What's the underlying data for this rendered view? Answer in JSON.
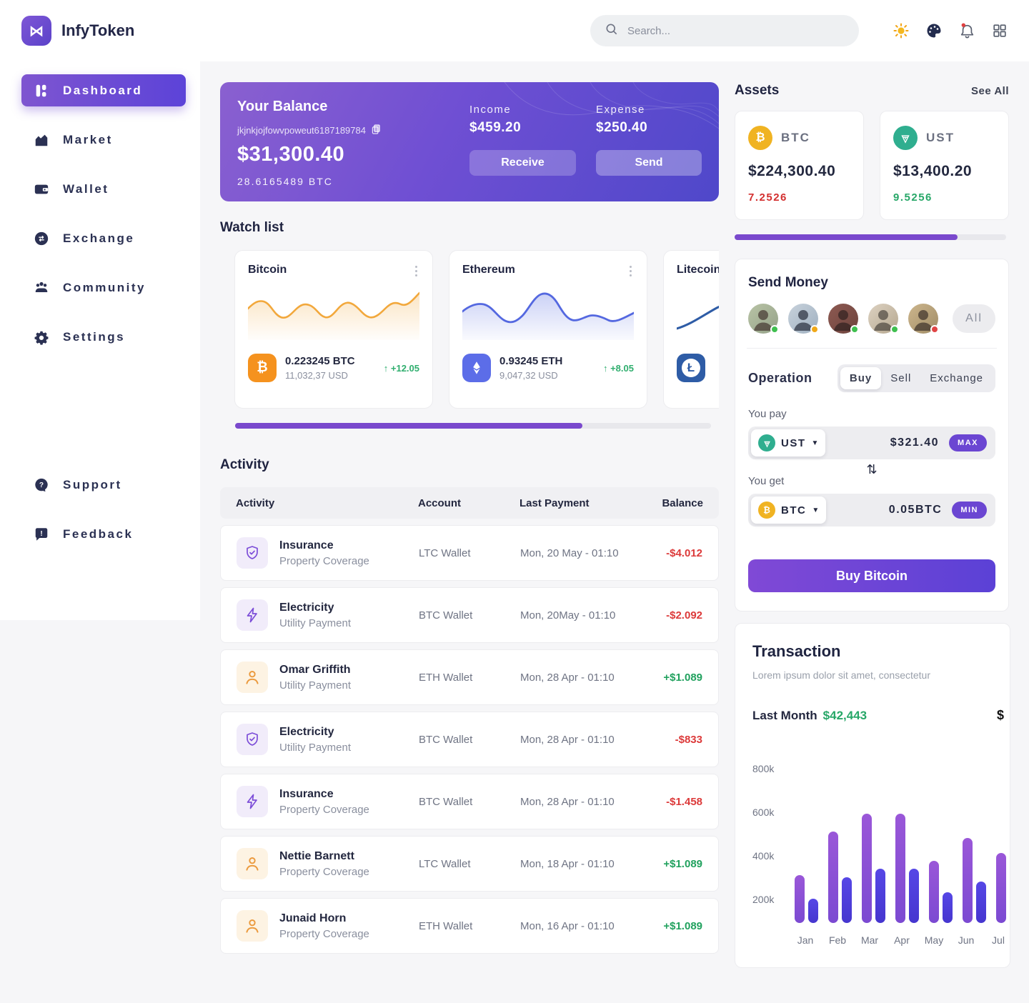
{
  "app": {
    "name": "InfyToken"
  },
  "sidebar": {
    "items": [
      {
        "label": "Dashboard",
        "icon": "dashboard-icon",
        "active": true
      },
      {
        "label": "Market",
        "icon": "market-icon",
        "active": false
      },
      {
        "label": "Wallet",
        "icon": "wallet-icon",
        "active": false
      },
      {
        "label": "Exchange",
        "icon": "exchange-icon",
        "active": false
      },
      {
        "label": "Community",
        "icon": "community-icon",
        "active": false
      },
      {
        "label": "Settings",
        "icon": "settings-icon",
        "active": false
      }
    ],
    "footer_items": [
      {
        "label": "Support",
        "icon": "support-icon"
      },
      {
        "label": "Feedback",
        "icon": "feedback-icon"
      }
    ]
  },
  "topbar": {
    "search_placeholder": "Search...",
    "icons": [
      "theme-sun-icon",
      "palette-icon",
      "notifications-bell-icon",
      "apps-grid-icon"
    ],
    "notification_unread": true
  },
  "balance": {
    "title": "Your Balance",
    "wallet_address": "jkjnkjojfowvpoweut6187189784",
    "amount_usd": "$31,300.40",
    "amount_btc": "28.6165489 BTC",
    "income_label": "Income",
    "income_value": "$459.20",
    "expense_label": "Expense",
    "expense_value": "$250.40",
    "receive_label": "Receive",
    "send_label": "Send"
  },
  "watchlist": {
    "title": "Watch list",
    "cards": [
      {
        "name": "Bitcoin",
        "coin": "BTC",
        "amount": "0.223245 BTC",
        "usd": "11,032,37 USD",
        "change": "+12.05",
        "trend": "up",
        "line_color": "#f2a83c"
      },
      {
        "name": "Ethereum",
        "coin": "ETH",
        "amount": "0.93245 ETH",
        "usd": "9,047,32 USD",
        "change": "+8.05",
        "trend": "up",
        "line_color": "#5468e0"
      },
      {
        "name": "Litecoin",
        "coin": "LTC",
        "line_color": "#2e5ca6"
      }
    ]
  },
  "activity": {
    "title": "Activity",
    "columns": [
      "Activity",
      "Account",
      "Last Payment",
      "Balance"
    ],
    "rows": [
      {
        "title": "Insurance",
        "subtitle": "Property Coverage",
        "icon": "shield-icon",
        "account": "LTC Wallet",
        "last_payment": "Mon, 20 May - 01:10",
        "balance": "-$4.012",
        "direction": "negative"
      },
      {
        "title": "Electricity",
        "subtitle": "Utility Payment",
        "icon": "bolt-icon",
        "account": "BTC Wallet",
        "last_payment": "Mon, 20May - 01:10",
        "balance": "-$2.092",
        "direction": "negative"
      },
      {
        "title": "Omar Griffith",
        "subtitle": "Utility Payment",
        "icon": "person-icon",
        "account": "ETH Wallet",
        "last_payment": "Mon, 28 Apr - 01:10",
        "balance": "+$1.089",
        "direction": "positive"
      },
      {
        "title": "Electricity",
        "subtitle": "Utility Payment",
        "icon": "shield-icon",
        "account": "BTC Wallet",
        "last_payment": "Mon, 28 Apr - 01:10",
        "balance": "-$833",
        "direction": "negative"
      },
      {
        "title": "Insurance",
        "subtitle": "Property Coverage",
        "icon": "bolt-icon",
        "account": "BTC Wallet",
        "last_payment": "Mon, 28 Apr - 01:10",
        "balance": "-$1.458",
        "direction": "negative"
      },
      {
        "title": "Nettie Barnett",
        "subtitle": "Property Coverage",
        "icon": "person-icon",
        "account": "LTC Wallet",
        "last_payment": "Mon, 18 Apr - 01:10",
        "balance": "+$1.089",
        "direction": "positive"
      },
      {
        "title": "Junaid Horn",
        "subtitle": "Property Coverage",
        "icon": "person-icon",
        "account": "ETH Wallet",
        "last_payment": "Mon, 16 Apr - 01:10",
        "balance": "+$1.089",
        "direction": "positive"
      }
    ]
  },
  "assets": {
    "title": "Assets",
    "see_all_label": "See All",
    "cards": [
      {
        "symbol": "BTC",
        "value": "$224,300.40",
        "quantity": "7.2526",
        "quantity_color": "#d32f2f"
      },
      {
        "symbol": "UST",
        "value": "$13,400.20",
        "quantity": "9.5256",
        "quantity_color": "#27a768"
      }
    ]
  },
  "send_money": {
    "title": "Send Money",
    "all_label": "All",
    "contacts": [
      {
        "status": "online"
      },
      {
        "status": "away"
      },
      {
        "status": "online"
      },
      {
        "status": "online"
      },
      {
        "status": "busy"
      }
    ]
  },
  "operation": {
    "label": "Operation",
    "tabs": [
      "Buy",
      "Sell",
      "Exchange"
    ],
    "active_tab": "Buy",
    "you_pay": {
      "label": "You pay",
      "currency": "UST",
      "amount": "$321.40",
      "badge": "MAX"
    },
    "you_get": {
      "label": "You get",
      "currency": "BTC",
      "amount": "0.05BTC",
      "badge": "MIN"
    },
    "swap_icon": "swap-vertical-icon",
    "submit_label": "Buy Bitcoin"
  },
  "transaction": {
    "title": "Transaction",
    "subtitle": "Lorem ipsum dolor sit amet, consectetur",
    "last_month_label": "Last Month",
    "last_month_value": "$42,443",
    "clipped_right_symbol": "$",
    "chart_data": {
      "type": "bar",
      "categories": [
        "Jan",
        "Feb",
        "Mar",
        "Apr",
        "May",
        "Jun",
        "Jul"
      ],
      "series": [
        {
          "name": "primary",
          "color": "#8a52d4",
          "values_k": [
            310,
            510,
            590,
            590,
            375,
            480,
            410
          ]
        },
        {
          "name": "secondary",
          "color": "#4e3ee0",
          "values_k": [
            200,
            300,
            340,
            340,
            230,
            280,
            240
          ]
        }
      ],
      "y_tick_labels": [
        "200k",
        "400k",
        "600k",
        "800k"
      ],
      "ylim_k": [
        0,
        800
      ],
      "grid": false,
      "legend": false
    }
  },
  "colors": {
    "accent_purple": "#6b46d2",
    "positive_green": "#21a15e",
    "negative_red": "#dc3a3a",
    "btc_orange": "#f5921e",
    "eth_blue": "#5c6de8",
    "ust_teal": "#2fae8f",
    "ltc_navy": "#2e5ca6"
  }
}
